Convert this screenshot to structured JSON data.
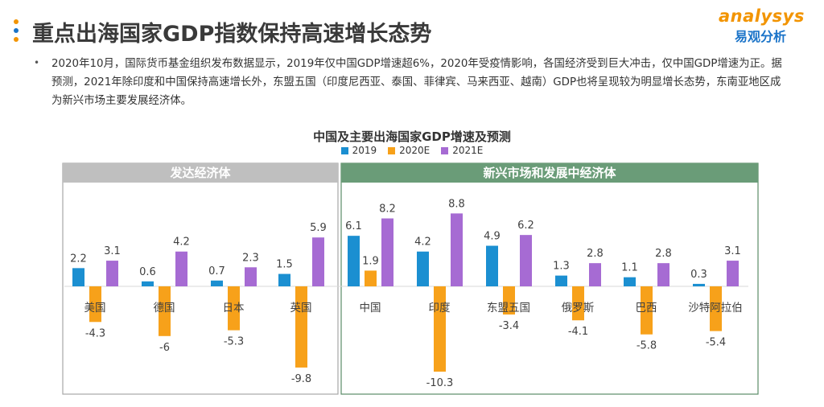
{
  "header": {
    "title": "重点出海国家GDP指数保持高速增长态势",
    "dot_colors": [
      "#f29400",
      "#1a73c8",
      "#f29400"
    ]
  },
  "logo": {
    "brand": "analysys",
    "brand_cn": "易观分析"
  },
  "description": "2020年10月，国际货币基金组织发布数据显示，2019年仅中国GDP增速超6%，2020年受疫情影响，各国经济受到巨大冲击，仅中国GDP增速为正。据预测，2021年除印度和中国保持高速增长外，东盟五国（印度尼西亚、泰国、菲律宾、马来西亚、越南）GDP也将呈现较为明显增长态势，东南亚地区成为新兴市场主要发展经济体。",
  "chart_data": {
    "type": "bar",
    "title": "中国及主要出海国家GDP增速及预测",
    "categories": [
      "美国",
      "德国",
      "日本",
      "英国",
      "中国",
      "印度",
      "东盟五国",
      "俄罗斯",
      "巴西",
      "沙特阿拉伯"
    ],
    "series": [
      {
        "name": "2019",
        "color": "#1b8fd1",
        "values": [
          2.2,
          0.6,
          0.7,
          1.5,
          6.1,
          4.2,
          4.9,
          1.3,
          1.1,
          0.3
        ]
      },
      {
        "name": "2020E",
        "color": "#f7a11a",
        "values": [
          -4.3,
          -6,
          -5.3,
          -9.8,
          1.9,
          -10.3,
          -3.4,
          -4.1,
          -5.8,
          -5.4
        ]
      },
      {
        "name": "2021E",
        "color": "#a66bd3",
        "values": [
          3.1,
          4.2,
          2.3,
          5.9,
          8.2,
          8.8,
          6.2,
          2.8,
          2.8,
          3.1
        ]
      }
    ],
    "groups": [
      {
        "label": "发达经济体",
        "count": 4,
        "header_color": "#bfbfbf",
        "border_color": "#a6a6a6"
      },
      {
        "label": "新兴市场和发展中经济体",
        "count": 6,
        "header_color": "#6a9c78",
        "border_color": "#5a8c68"
      }
    ],
    "legend_position": "top-center",
    "grid": false
  }
}
